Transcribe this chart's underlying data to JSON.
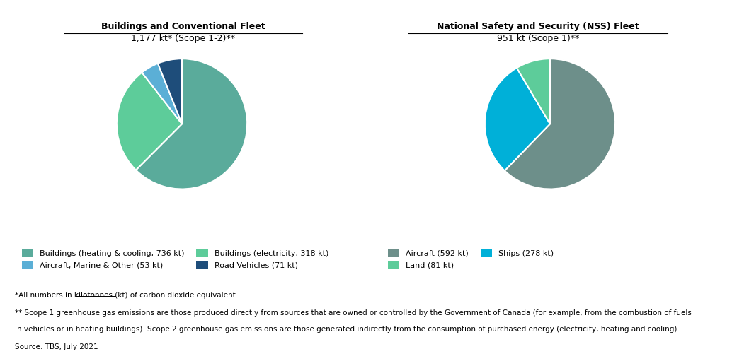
{
  "chart1": {
    "title_line1": "Buildings and Conventional Fleet",
    "title_line2": "1,177 kt* (Scope 1-2)**",
    "values": [
      736,
      318,
      53,
      71
    ],
    "labels": [
      "Buildings (heating & cooling, 736 kt)",
      "Buildings (electricity, 318 kt)",
      "Aircraft, Marine & Other (53 kt)",
      "Road Vehicles (71 kt)"
    ],
    "colors": [
      "#5aab9b",
      "#5dcc9a",
      "#5bafd6",
      "#1e4d7a"
    ],
    "startangle": 90
  },
  "chart2": {
    "title_line1": "National Safety and Security (NSS) Fleet",
    "title_line2": "951 kt (Scope 1)**",
    "values": [
      592,
      278,
      81
    ],
    "labels": [
      "Aircraft (592 kt)",
      "Ships (278 kt)",
      "Land (81 kt)"
    ],
    "colors": [
      "#6d8f8a",
      "#00b0d8",
      "#5dcc9a"
    ],
    "startangle": 90
  },
  "footnote1": "*All numbers in kilotonnes (kt) of carbon dioxide equivalent.",
  "footnote2": "** Scope 1 greenhouse gas emissions are those produced directly from sources that are owned or controlled by the Government of Canada (for example, from the combustion of fuels",
  "footnote3": "in vehicles or in heating buildings). Scope 2 greenhouse gas emissions are those generated indirectly from the consumption of purchased energy (electricity, heating and cooling).",
  "footnote4": "Source: TBS, July 2021",
  "bg_color": "#ffffff",
  "text_color": "#000000",
  "wedge_edge_color": "#ffffff"
}
